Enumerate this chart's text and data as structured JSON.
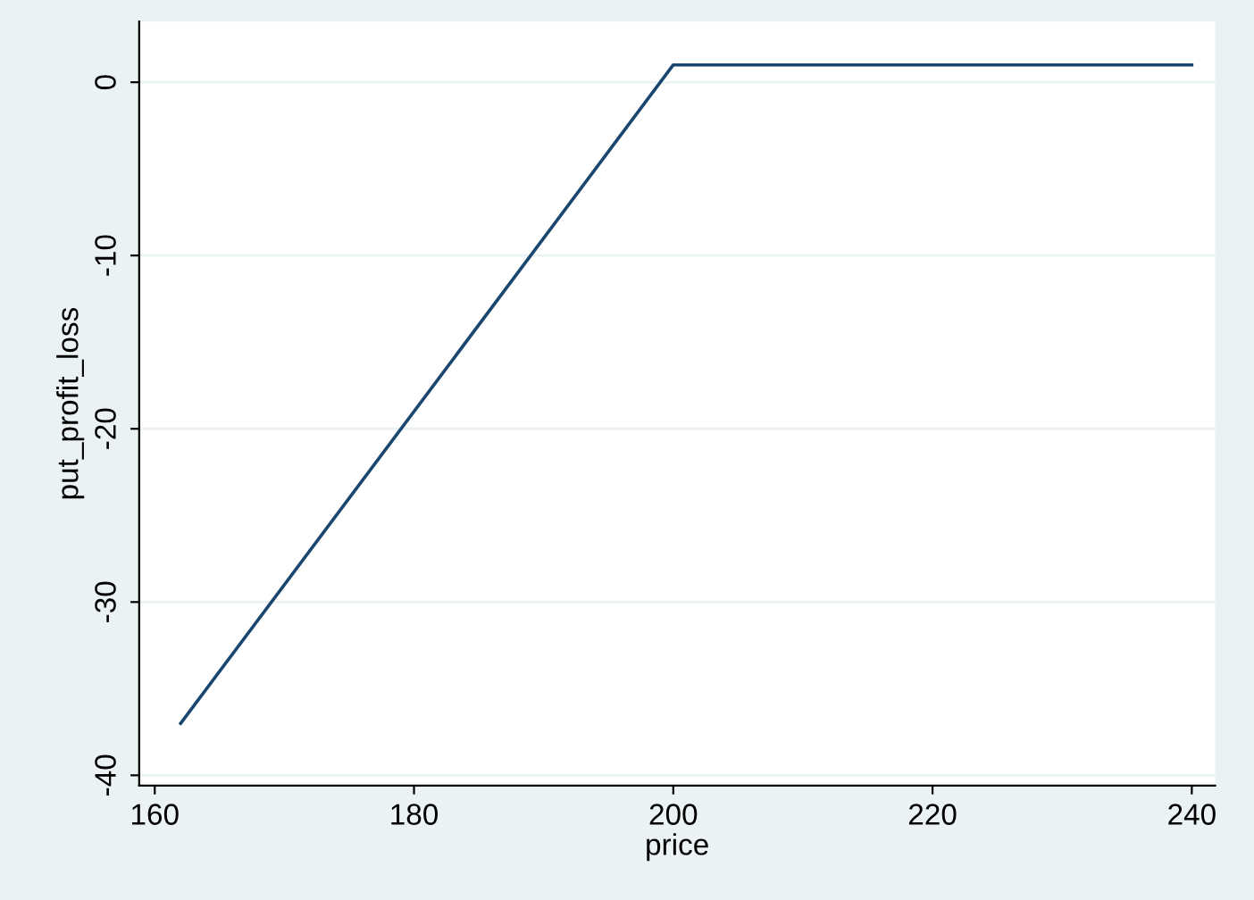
{
  "chart_data": {
    "type": "line",
    "xlabel": "price",
    "ylabel": "put_profit_loss",
    "x": [
      162,
      200,
      240
    ],
    "series": [
      {
        "color": "#1a476f",
        "values": [
          -37,
          1,
          1
        ]
      }
    ],
    "xlim": [
      158.8,
      241.8
    ],
    "xticks": [
      160,
      180,
      200,
      220,
      240
    ],
    "ylim": [
      -40.6,
      3.5
    ],
    "yticks": [
      -40,
      -30,
      -20,
      -10,
      0
    ],
    "grid": "y",
    "marker": "none",
    "line_style": "solid",
    "legend": false
  }
}
